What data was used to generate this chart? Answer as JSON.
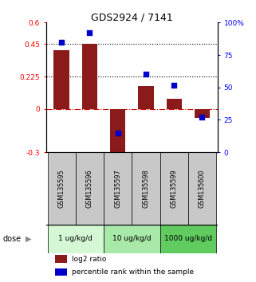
{
  "title": "GDS2924 / 7141",
  "samples": [
    "GSM135595",
    "GSM135596",
    "GSM135597",
    "GSM135598",
    "GSM135599",
    "GSM135600"
  ],
  "log2_ratio": [
    0.41,
    0.45,
    -0.37,
    0.16,
    0.07,
    -0.06
  ],
  "percentile_rank": [
    85,
    92,
    15,
    60,
    52,
    27
  ],
  "ylim_left": [
    -0.3,
    0.6
  ],
  "ylim_right": [
    0,
    100
  ],
  "yticks_left": [
    -0.3,
    0.0,
    0.225,
    0.45,
    0.6
  ],
  "ytick_labels_left": [
    "-0.3",
    "0",
    "0.225",
    "0.45",
    "0.6"
  ],
  "yticks_right": [
    0,
    25,
    50,
    75,
    100
  ],
  "ytick_labels_right": [
    "0",
    "25",
    "50",
    "75",
    "100%"
  ],
  "hlines": [
    0.225,
    0.45
  ],
  "dose_groups": [
    {
      "label": "1 ug/kg/d",
      "cols": [
        0,
        1
      ],
      "color": "#d4f7d4"
    },
    {
      "label": "10 ug/kg/d",
      "cols": [
        2,
        3
      ],
      "color": "#a8e8a8"
    },
    {
      "label": "1000 ug/kg/d",
      "cols": [
        4,
        5
      ],
      "color": "#60cc60"
    }
  ],
  "bar_color": "#8B1A1A",
  "dot_color": "#0000CC",
  "zero_line_color": "#CC0000",
  "bar_width": 0.55,
  "legend_items": [
    {
      "color": "#8B1A1A",
      "label": "log2 ratio"
    },
    {
      "color": "#0000CC",
      "label": "percentile rank within the sample"
    }
  ],
  "sample_box_color": "#c8c8c8",
  "title_fontsize": 9,
  "tick_fontsize": 6.5,
  "label_fontsize": 5.8,
  "dose_fontsize": 6.5,
  "legend_fontsize": 6.5
}
